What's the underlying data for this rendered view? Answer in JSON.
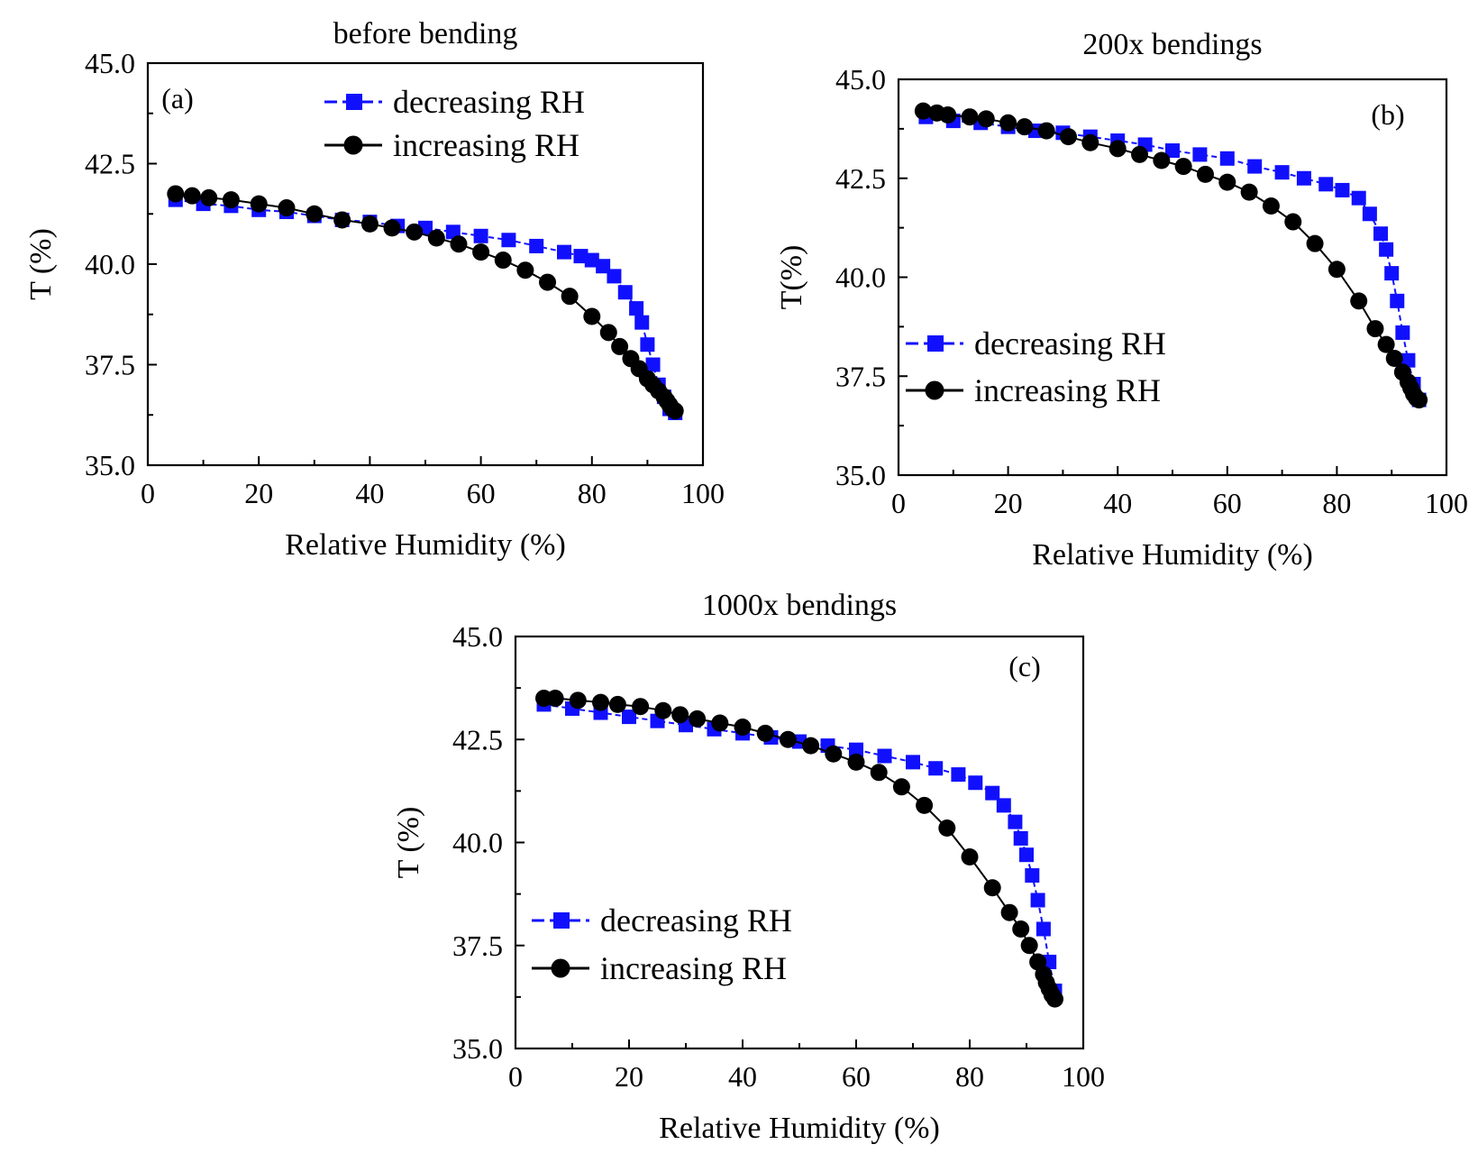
{
  "chart_data": [
    {
      "type": "scatter",
      "title": "before bending",
      "panel_label": "(a)",
      "xlabel": "Relative Humidity (%)",
      "ylabel": "T (%)",
      "xlim": [
        0,
        100
      ],
      "ylim": [
        35.0,
        45.0
      ],
      "xticks": [
        "0",
        "20",
        "40",
        "60",
        "80",
        "100"
      ],
      "yticks": [
        "35.0",
        "37.5",
        "40.0",
        "42.5",
        "45.0"
      ],
      "legend_position": "top-right",
      "series": [
        {
          "name": "decreasing RH",
          "color": "#1010ff",
          "marker": "square",
          "x": [
            5,
            10,
            15,
            20,
            25,
            30,
            35,
            40,
            45,
            50,
            55,
            60,
            65,
            70,
            75,
            78,
            80,
            82,
            84,
            86,
            88,
            89,
            90,
            91,
            92,
            93,
            94,
            95
          ],
          "y": [
            41.6,
            41.5,
            41.45,
            41.35,
            41.3,
            41.2,
            41.1,
            41.05,
            40.95,
            40.9,
            40.8,
            40.7,
            40.6,
            40.45,
            40.3,
            40.2,
            40.1,
            39.95,
            39.7,
            39.3,
            38.9,
            38.55,
            38.0,
            37.5,
            37.0,
            36.7,
            36.4,
            36.3
          ]
        },
        {
          "name": "increasing RH",
          "color": "#000000",
          "marker": "circle",
          "x": [
            5,
            8,
            11,
            15,
            20,
            25,
            30,
            35,
            40,
            44,
            48,
            52,
            56,
            60,
            64,
            68,
            72,
            76,
            80,
            83,
            85,
            87,
            88.5,
            90,
            91,
            92,
            93,
            93.5,
            94,
            94.5,
            95
          ],
          "y": [
            41.75,
            41.7,
            41.65,
            41.6,
            41.5,
            41.4,
            41.25,
            41.1,
            41.0,
            40.9,
            40.8,
            40.65,
            40.5,
            40.3,
            40.1,
            39.85,
            39.55,
            39.2,
            38.7,
            38.3,
            37.95,
            37.65,
            37.4,
            37.15,
            37.0,
            36.85,
            36.7,
            36.6,
            36.5,
            36.4,
            36.35
          ]
        }
      ]
    },
    {
      "type": "scatter",
      "title": "200x bendings",
      "panel_label": "(b)",
      "xlabel": "Relative Humidity (%)",
      "ylabel": "T(%)",
      "xlim": [
        0,
        100
      ],
      "ylim": [
        35.0,
        45.0
      ],
      "xticks": [
        "0",
        "20",
        "40",
        "60",
        "80",
        "100"
      ],
      "yticks": [
        "35.0",
        "37.5",
        "40.0",
        "42.5",
        "45.0"
      ],
      "legend_position": "bottom-left",
      "series": [
        {
          "name": "decreasing RH",
          "color": "#1010ff",
          "marker": "square",
          "x": [
            5,
            10,
            15,
            20,
            25,
            30,
            35,
            40,
            45,
            50,
            55,
            60,
            65,
            70,
            74,
            78,
            81,
            84,
            86,
            88,
            89,
            90,
            91,
            92,
            93,
            94,
            95
          ],
          "y": [
            44.05,
            43.95,
            43.9,
            43.8,
            43.7,
            43.65,
            43.55,
            43.45,
            43.35,
            43.2,
            43.1,
            43.0,
            42.8,
            42.65,
            42.5,
            42.35,
            42.2,
            42.0,
            41.6,
            41.1,
            40.7,
            40.1,
            39.4,
            38.6,
            37.9,
            37.3,
            36.9
          ]
        },
        {
          "name": "increasing RH",
          "color": "#000000",
          "marker": "circle",
          "x": [
            4.5,
            7,
            9,
            13,
            16,
            20,
            23,
            27,
            31,
            35,
            40,
            44,
            48,
            52,
            56,
            60,
            64,
            68,
            72,
            76,
            80,
            84,
            87,
            89,
            90.5,
            92,
            93,
            93.5,
            94,
            94.5,
            95
          ],
          "y": [
            44.2,
            44.15,
            44.1,
            44.05,
            44.0,
            43.9,
            43.8,
            43.7,
            43.55,
            43.4,
            43.25,
            43.1,
            42.95,
            42.8,
            42.6,
            42.4,
            42.15,
            41.8,
            41.4,
            40.85,
            40.2,
            39.4,
            38.7,
            38.3,
            37.95,
            37.6,
            37.35,
            37.2,
            37.05,
            36.95,
            36.9
          ]
        }
      ]
    },
    {
      "type": "scatter",
      "title": "1000x bendings",
      "panel_label": "(c)",
      "xlabel": "Relative Humidity (%)",
      "ylabel": "T (%)",
      "xlim": [
        0,
        100
      ],
      "ylim": [
        35.0,
        45.0
      ],
      "xticks": [
        "0",
        "20",
        "40",
        "60",
        "80",
        "100"
      ],
      "yticks": [
        "35.0",
        "37.5",
        "40.0",
        "42.5",
        "45.0"
      ],
      "legend_position": "bottom-left",
      "series": [
        {
          "name": "decreasing RH",
          "color": "#1010ff",
          "marker": "square",
          "x": [
            5,
            10,
            15,
            20,
            25,
            30,
            35,
            40,
            45,
            50,
            55,
            60,
            65,
            70,
            74,
            78,
            81,
            84,
            86,
            88,
            89,
            90,
            91,
            92,
            93,
            94,
            95
          ],
          "y": [
            43.35,
            43.25,
            43.15,
            43.05,
            42.95,
            42.85,
            42.75,
            42.65,
            42.55,
            42.45,
            42.35,
            42.25,
            42.1,
            41.95,
            41.8,
            41.65,
            41.45,
            41.2,
            40.9,
            40.5,
            40.1,
            39.7,
            39.2,
            38.6,
            37.9,
            37.1,
            36.4
          ]
        },
        {
          "name": "increasing RH",
          "color": "#000000",
          "marker": "circle",
          "x": [
            5,
            7,
            11,
            15,
            18,
            22,
            26,
            29,
            32,
            36,
            40,
            44,
            48,
            52,
            56,
            60,
            64,
            68,
            72,
            76,
            80,
            84,
            87,
            89,
            90.5,
            92,
            93,
            93.5,
            94,
            94.5,
            95
          ],
          "y": [
            43.5,
            43.5,
            43.45,
            43.4,
            43.35,
            43.3,
            43.2,
            43.1,
            43.0,
            42.9,
            42.8,
            42.65,
            42.5,
            42.35,
            42.15,
            41.95,
            41.7,
            41.35,
            40.9,
            40.35,
            39.65,
            38.9,
            38.3,
            37.9,
            37.5,
            37.1,
            36.8,
            36.6,
            36.45,
            36.3,
            36.2
          ]
        }
      ]
    }
  ]
}
